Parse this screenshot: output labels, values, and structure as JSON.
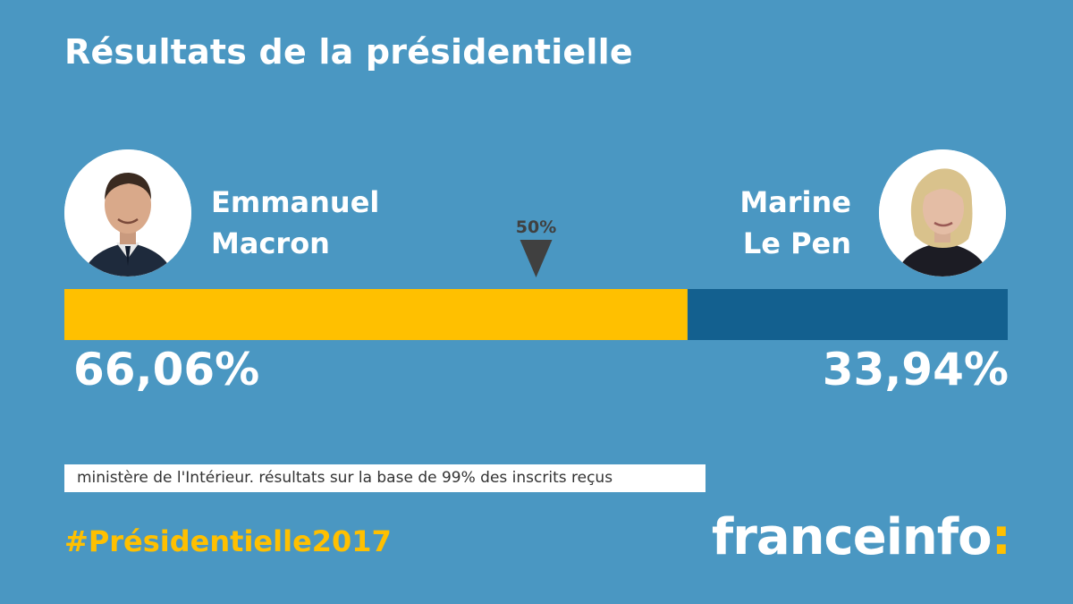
{
  "title": "Résultats de la présidentielle",
  "candidates": {
    "left": {
      "first_name": "Emmanuel",
      "last_name": "Macron",
      "percent_label": "66,06%",
      "color": "#ffc000"
    },
    "right": {
      "first_name": "Marine",
      "last_name": "Le Pen",
      "percent_label": "33,94%",
      "color": "#13608f"
    }
  },
  "marker": {
    "label": "50%",
    "value": 50
  },
  "source": "ministère de l'Intérieur. résultats sur la base de 99% des inscrits reçus",
  "hashtag": "#Présidentielle2017",
  "logo": {
    "text": "franceinfo",
    "colon": ":"
  },
  "colors": {
    "background": "#4a97c2",
    "accent": "#ffc000",
    "dark_blue": "#13608f"
  },
  "chart_data": {
    "type": "bar",
    "orientation": "horizontal-stacked",
    "categories": [
      "Emmanuel Macron",
      "Marine Le Pen"
    ],
    "values": [
      66.06,
      33.94
    ],
    "xlim": [
      0,
      100
    ],
    "reference_line": 50,
    "title": "Résultats de la présidentielle"
  }
}
